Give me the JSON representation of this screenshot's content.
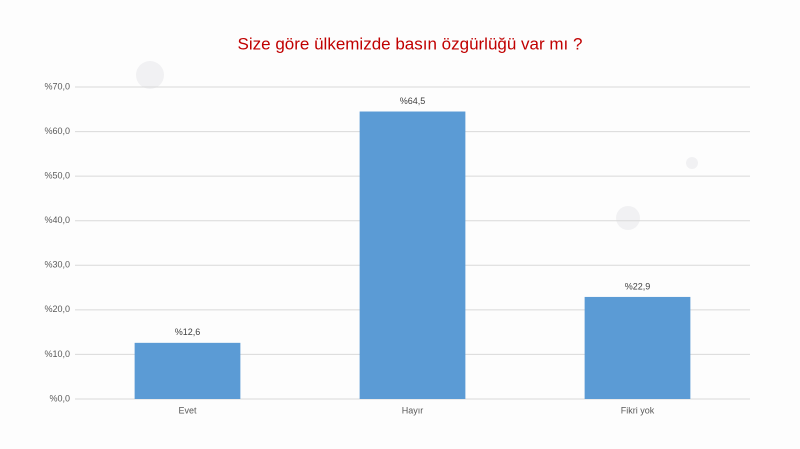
{
  "chart_data": {
    "type": "bar",
    "title": "Size göre ülkemizde basın özgürlüğü var mı ?",
    "categories": [
      "Evet",
      "Hayır",
      "Fikri yok"
    ],
    "values": [
      12.6,
      64.5,
      22.9
    ],
    "value_labels": [
      "%12,6",
      "%64,5",
      "%22,9"
    ],
    "color": "#5b9bd5",
    "ylim": [
      0,
      70
    ],
    "yticks": [
      {
        "value": 0,
        "label": "%0,0"
      },
      {
        "value": 10,
        "label": "%10,0"
      },
      {
        "value": 20,
        "label": "%20,0"
      },
      {
        "value": 30,
        "label": "%30,0"
      },
      {
        "value": 40,
        "label": "%40,0"
      },
      {
        "value": 50,
        "label": "%50,0"
      },
      {
        "value": 60,
        "label": "%60,0"
      },
      {
        "value": 70,
        "label": "%70,0"
      }
    ],
    "grid": true
  }
}
